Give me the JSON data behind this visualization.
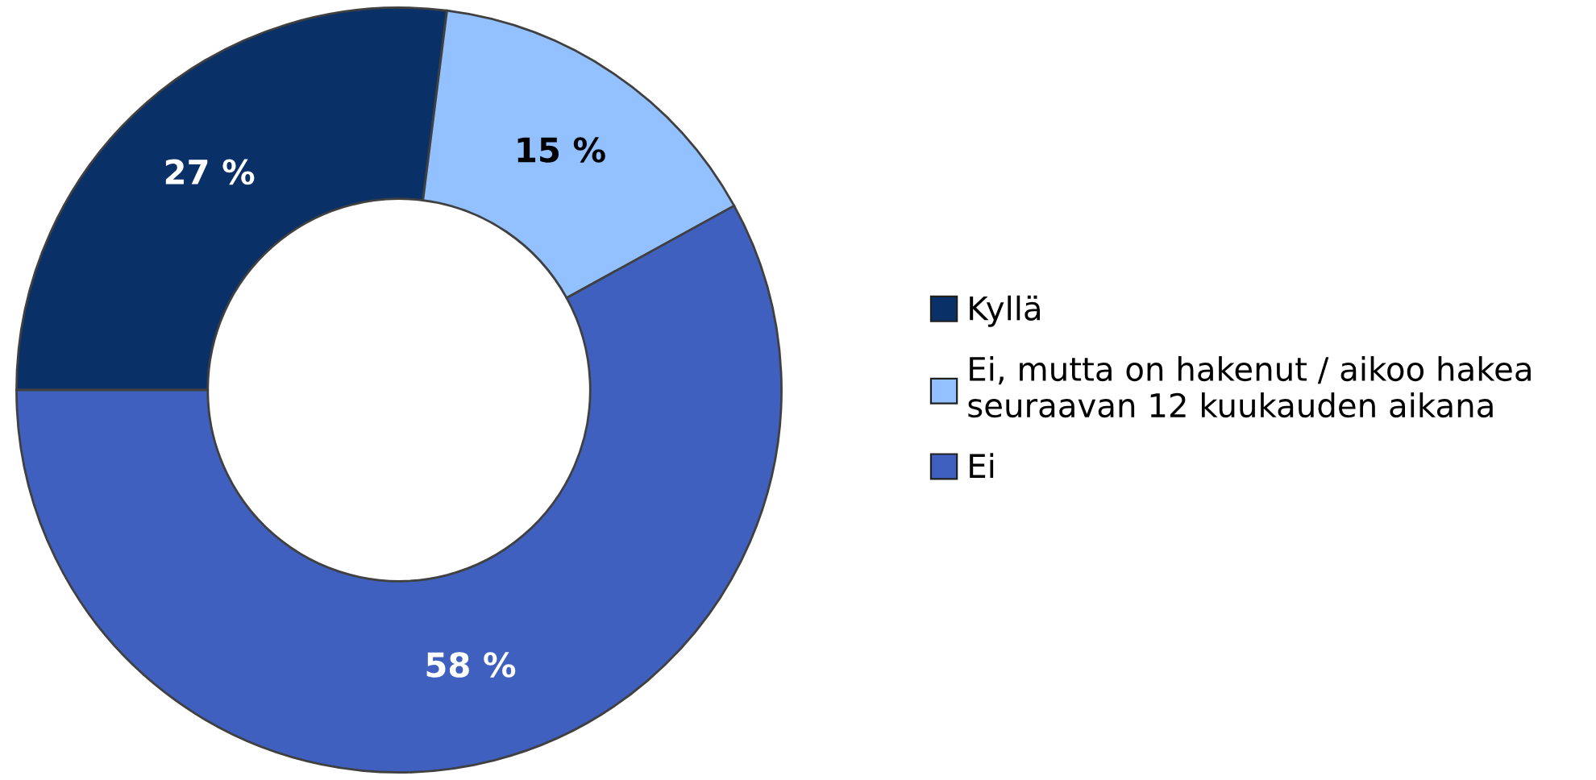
{
  "chart_data": {
    "type": "donut",
    "categories": [
      "Kyllä",
      "Ei, mutta on hakenut / aikoo hakea\nseuraavan 12 kuukauden aikana",
      "Ei"
    ],
    "values": [
      27,
      15,
      58
    ],
    "colors": [
      "#0a3068",
      "#93c0ff",
      "#4060c0"
    ],
    "value_labels": [
      "27 %",
      "15 %",
      "58 %"
    ],
    "legend": "right"
  }
}
